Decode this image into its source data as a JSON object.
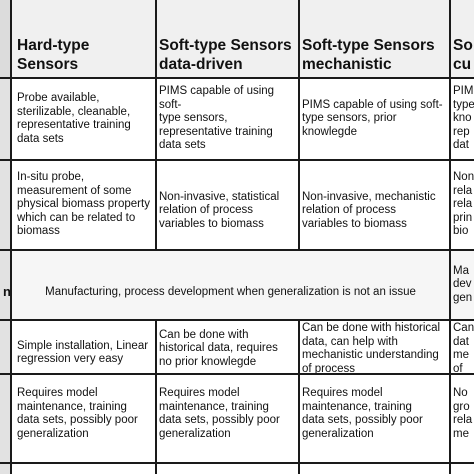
{
  "headers": {
    "hard": "Hard-type Sensors",
    "soft_data": "Soft-type Sensors\ndata-driven",
    "soft_mech": "Soft-type Sensors\nmechanistic",
    "partial": "So\ncu"
  },
  "row1": {
    "hard": "Probe available,\nsterilizable, cleanable,\nrepresentative training\ndata sets",
    "soft_data": "PIMS capable of using soft-\ntype sensors,\nrepresentative training\ndata sets",
    "soft_mech": "PIMS capable of using soft-\ntype sensors, prior\nknowlegde",
    "partial": "PIM\ntype\nkno\nrep\ndat"
  },
  "row2": {
    "hard": "In-situ probe,\nmeasurement of some\nphysical biomass property\nwhich can be related to\nbiomass",
    "soft_data": "Non-invasive, statistical\nrelation of process\nvariables to biomass",
    "soft_mech": "Non-invasive, mechanistic\nrelation of process\nvariables to biomass",
    "partial": "Non\nrela\nrela\nprin\nbio"
  },
  "row3": {
    "stub": "n",
    "merged": "Manufacturing, process development when generalization is not an issue",
    "partial": "Ma\ndev\ngen"
  },
  "row4": {
    "hard": "Simple installation, Linear\nregression very easy",
    "soft_data": "Can be done with\nhistorical data, requires\nno prior knowlegde",
    "soft_mech": "Can be done with historical\ndata, can help with\nmechanistic understanding\nof process",
    "partial": "Can\ndat\nme\nof p"
  },
  "row5": {
    "hard": "Requires model\nmaintenance, training\ndata sets, possibly poor\ngeneralization",
    "soft_data": "Requires model\nmaintenance, training\ndata sets, possibly poor\ngeneralization",
    "soft_mech": "Requires model\nmaintenance, training\ndata sets, possibly poor\ngeneralization",
    "partial": "No\ngro\nrela\nme"
  }
}
